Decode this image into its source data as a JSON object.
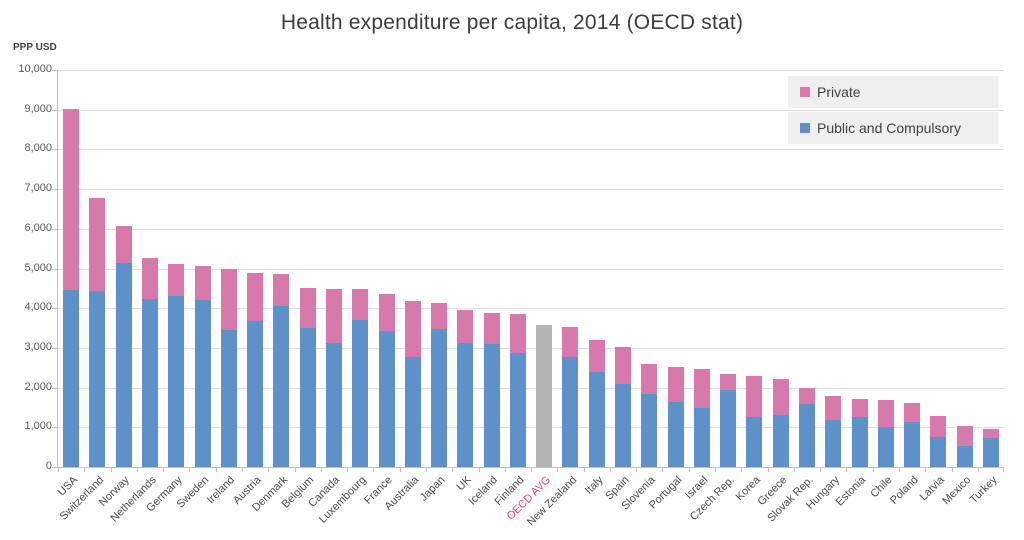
{
  "title": "Health expenditure per capita, 2014 (OECD stat)",
  "y_axis_unit_label": "PPP USD",
  "legend": {
    "items": [
      {
        "label": "Private",
        "series_key": "private"
      },
      {
        "label": "Public and Compulsory",
        "series_key": "public"
      }
    ]
  },
  "colors": {
    "private": "#d77aab",
    "public": "#5e91c9",
    "average_bar": "#b4b4b4",
    "average_label": "#ef437f",
    "gridline": "#dedede",
    "axis": "#bfbfbf",
    "tick_text": "#595959",
    "category_text": "#4a4a4a",
    "title_text": "#3d3d3d",
    "legend_bg": "#efefef"
  },
  "chart_data": {
    "type": "bar",
    "stacked": true,
    "title": "Health expenditure per capita, 2014 (OECD stat)",
    "ylabel": "PPP USD",
    "ylim": [
      0,
      10000
    ],
    "y_tick_step": 1000,
    "grid": true,
    "legend_position": "top-right",
    "series_names": [
      "Public and Compulsory",
      "Private"
    ],
    "bars": [
      {
        "label": "USA",
        "public": 4450,
        "private": 4570
      },
      {
        "label": "Switzerland",
        "public": 4430,
        "private": 2350
      },
      {
        "label": "Norway",
        "public": 5150,
        "private": 920
      },
      {
        "label": "Netherlands",
        "public": 4230,
        "private": 1030
      },
      {
        "label": "Germany",
        "public": 4310,
        "private": 800
      },
      {
        "label": "Sweden",
        "public": 4210,
        "private": 850
      },
      {
        "label": "Ireland",
        "public": 3440,
        "private": 1550
      },
      {
        "label": "Austria",
        "public": 3690,
        "private": 1200
      },
      {
        "label": "Denmark",
        "public": 4060,
        "private": 790
      },
      {
        "label": "Belgium",
        "public": 3490,
        "private": 1020
      },
      {
        "label": "Canada",
        "public": 3130,
        "private": 1350
      },
      {
        "label": "Luxembourg",
        "public": 3700,
        "private": 780
      },
      {
        "label": "France",
        "public": 3430,
        "private": 920
      },
      {
        "label": "Australia",
        "public": 2780,
        "private": 1410
      },
      {
        "label": "Japan",
        "public": 3480,
        "private": 650
      },
      {
        "label": "UK",
        "public": 3120,
        "private": 830
      },
      {
        "label": "Iceland",
        "public": 3110,
        "private": 760
      },
      {
        "label": "Finland",
        "public": 2870,
        "private": 980
      },
      {
        "label": "OECD AVG",
        "average": 3570
      },
      {
        "label": "New Zealand",
        "public": 2770,
        "private": 750
      },
      {
        "label": "Italy",
        "public": 2400,
        "private": 800
      },
      {
        "label": "Spain",
        "public": 2100,
        "private": 930
      },
      {
        "label": "Slovenia",
        "public": 1850,
        "private": 750
      },
      {
        "label": "Portugal",
        "public": 1640,
        "private": 890
      },
      {
        "label": "Israel",
        "public": 1480,
        "private": 990
      },
      {
        "label": "Czech Rep.",
        "public": 1950,
        "private": 400
      },
      {
        "label": "Korea",
        "public": 1250,
        "private": 1050
      },
      {
        "label": "Greece",
        "public": 1310,
        "private": 910
      },
      {
        "label": "Slovak Rep.",
        "public": 1580,
        "private": 420
      },
      {
        "label": "Hungary",
        "public": 1180,
        "private": 600
      },
      {
        "label": "Estonia",
        "public": 1270,
        "private": 450
      },
      {
        "label": "Chile",
        "public": 1000,
        "private": 680
      },
      {
        "label": "Poland",
        "public": 1130,
        "private": 470
      },
      {
        "label": "Latvia",
        "public": 760,
        "private": 530
      },
      {
        "label": "Mexico",
        "public": 530,
        "private": 510
      },
      {
        "label": "Turkey",
        "public": 730,
        "private": 230
      }
    ]
  }
}
